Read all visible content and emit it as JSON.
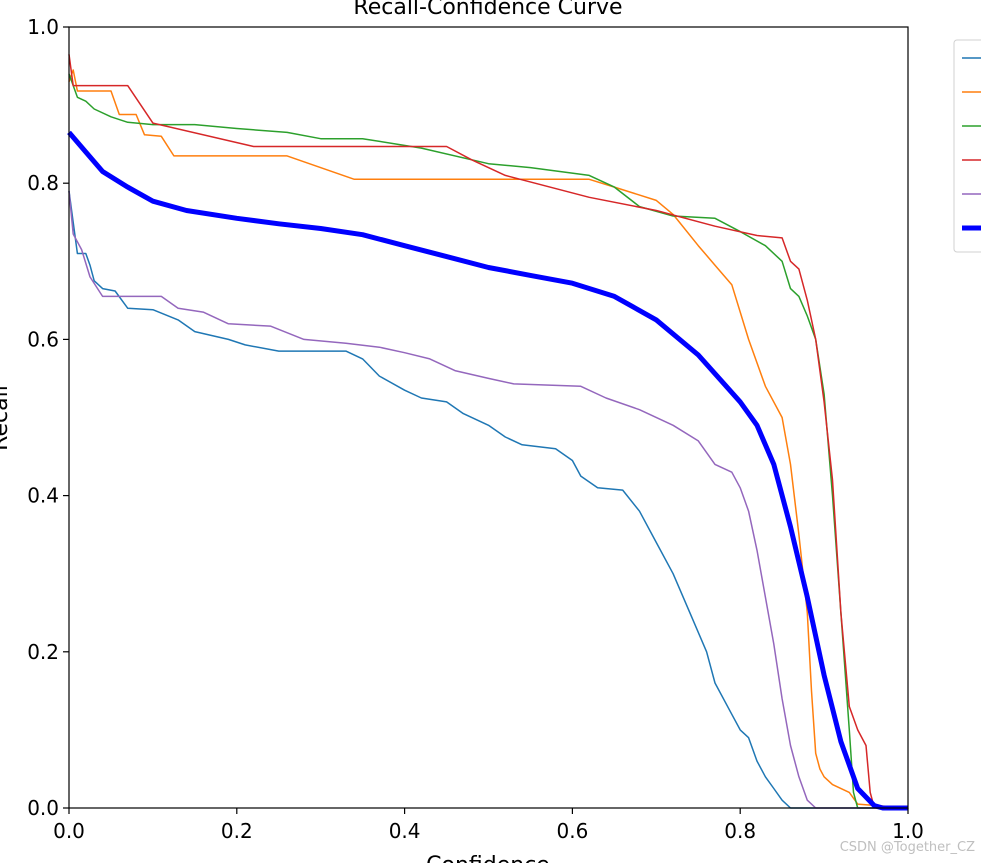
{
  "chart_data": {
    "type": "line",
    "title": "Recall-Confidence Curve",
    "xlabel": "Confidence",
    "ylabel": "Recall",
    "xlim": [
      0,
      1
    ],
    "ylim": [
      0,
      1
    ],
    "xticks": [
      "0.0",
      "0.2",
      "0.4",
      "0.6",
      "0.8",
      "1.0"
    ],
    "yticks": [
      "0.0",
      "0.2",
      "0.4",
      "0.6",
      "0.8",
      "1.0"
    ],
    "grid": false,
    "legend_position": "outside-top-right",
    "series": [
      {
        "color": "#1f77b4",
        "linewidth": 1.5,
        "points": [
          [
            0,
            0.79
          ],
          [
            0.005,
            0.75
          ],
          [
            0.01,
            0.71
          ],
          [
            0.02,
            0.71
          ],
          [
            0.025,
            0.695
          ],
          [
            0.03,
            0.675
          ],
          [
            0.04,
            0.665
          ],
          [
            0.055,
            0.662
          ],
          [
            0.07,
            0.64
          ],
          [
            0.1,
            0.638
          ],
          [
            0.13,
            0.625
          ],
          [
            0.15,
            0.61
          ],
          [
            0.19,
            0.6
          ],
          [
            0.21,
            0.593
          ],
          [
            0.25,
            0.585
          ],
          [
            0.28,
            0.585
          ],
          [
            0.33,
            0.585
          ],
          [
            0.35,
            0.575
          ],
          [
            0.37,
            0.553
          ],
          [
            0.4,
            0.535
          ],
          [
            0.42,
            0.525
          ],
          [
            0.45,
            0.52
          ],
          [
            0.47,
            0.505
          ],
          [
            0.5,
            0.49
          ],
          [
            0.52,
            0.475
          ],
          [
            0.54,
            0.465
          ],
          [
            0.58,
            0.46
          ],
          [
            0.6,
            0.445
          ],
          [
            0.61,
            0.425
          ],
          [
            0.63,
            0.41
          ],
          [
            0.66,
            0.407
          ],
          [
            0.68,
            0.38
          ],
          [
            0.7,
            0.34
          ],
          [
            0.72,
            0.3
          ],
          [
            0.74,
            0.25
          ],
          [
            0.76,
            0.2
          ],
          [
            0.77,
            0.16
          ],
          [
            0.79,
            0.12
          ],
          [
            0.8,
            0.1
          ],
          [
            0.81,
            0.09
          ],
          [
            0.82,
            0.06
          ],
          [
            0.83,
            0.04
          ],
          [
            0.84,
            0.025
          ],
          [
            0.85,
            0.01
          ],
          [
            0.86,
            0.0
          ],
          [
            1.0,
            0.0
          ]
        ]
      },
      {
        "color": "#ff7f0e",
        "linewidth": 1.5,
        "points": [
          [
            0,
            0.93
          ],
          [
            0.005,
            0.945
          ],
          [
            0.01,
            0.918
          ],
          [
            0.05,
            0.918
          ],
          [
            0.06,
            0.888
          ],
          [
            0.08,
            0.888
          ],
          [
            0.09,
            0.862
          ],
          [
            0.11,
            0.86
          ],
          [
            0.125,
            0.835
          ],
          [
            0.26,
            0.835
          ],
          [
            0.34,
            0.805
          ],
          [
            0.62,
            0.805
          ],
          [
            0.65,
            0.795
          ],
          [
            0.7,
            0.778
          ],
          [
            0.72,
            0.76
          ],
          [
            0.75,
            0.72
          ],
          [
            0.77,
            0.695
          ],
          [
            0.79,
            0.67
          ],
          [
            0.81,
            0.6
          ],
          [
            0.83,
            0.54
          ],
          [
            0.85,
            0.5
          ],
          [
            0.86,
            0.44
          ],
          [
            0.87,
            0.35
          ],
          [
            0.88,
            0.25
          ],
          [
            0.885,
            0.15
          ],
          [
            0.89,
            0.07
          ],
          [
            0.895,
            0.05
          ],
          [
            0.9,
            0.04
          ],
          [
            0.91,
            0.03
          ],
          [
            0.93,
            0.02
          ],
          [
            0.94,
            0.005
          ],
          [
            1.0,
            0.0
          ]
        ]
      },
      {
        "color": "#2ca02c",
        "linewidth": 1.5,
        "points": [
          [
            0,
            0.94
          ],
          [
            0.01,
            0.91
          ],
          [
            0.02,
            0.905
          ],
          [
            0.03,
            0.895
          ],
          [
            0.05,
            0.885
          ],
          [
            0.07,
            0.878
          ],
          [
            0.1,
            0.875
          ],
          [
            0.15,
            0.875
          ],
          [
            0.2,
            0.87
          ],
          [
            0.26,
            0.865
          ],
          [
            0.3,
            0.857
          ],
          [
            0.35,
            0.857
          ],
          [
            0.42,
            0.845
          ],
          [
            0.5,
            0.825
          ],
          [
            0.55,
            0.82
          ],
          [
            0.62,
            0.81
          ],
          [
            0.65,
            0.795
          ],
          [
            0.68,
            0.77
          ],
          [
            0.72,
            0.758
          ],
          [
            0.77,
            0.755
          ],
          [
            0.8,
            0.738
          ],
          [
            0.83,
            0.72
          ],
          [
            0.85,
            0.7
          ],
          [
            0.86,
            0.665
          ],
          [
            0.87,
            0.655
          ],
          [
            0.88,
            0.63
          ],
          [
            0.89,
            0.6
          ],
          [
            0.9,
            0.53
          ],
          [
            0.91,
            0.4
          ],
          [
            0.92,
            0.25
          ],
          [
            0.93,
            0.1
          ],
          [
            0.935,
            0.02
          ],
          [
            0.94,
            0.0
          ],
          [
            1.0,
            0.0
          ]
        ]
      },
      {
        "color": "#d62728",
        "linewidth": 1.5,
        "points": [
          [
            0,
            0.965
          ],
          [
            0.005,
            0.925
          ],
          [
            0.07,
            0.925
          ],
          [
            0.1,
            0.877
          ],
          [
            0.22,
            0.847
          ],
          [
            0.45,
            0.847
          ],
          [
            0.48,
            0.83
          ],
          [
            0.52,
            0.81
          ],
          [
            0.62,
            0.782
          ],
          [
            0.7,
            0.765
          ],
          [
            0.77,
            0.745
          ],
          [
            0.82,
            0.733
          ],
          [
            0.85,
            0.73
          ],
          [
            0.86,
            0.7
          ],
          [
            0.87,
            0.69
          ],
          [
            0.88,
            0.65
          ],
          [
            0.89,
            0.6
          ],
          [
            0.9,
            0.52
          ],
          [
            0.91,
            0.42
          ],
          [
            0.92,
            0.25
          ],
          [
            0.93,
            0.13
          ],
          [
            0.94,
            0.1
          ],
          [
            0.95,
            0.08
          ],
          [
            0.955,
            0.02
          ],
          [
            0.96,
            0.0
          ],
          [
            1.0,
            0.0
          ]
        ]
      },
      {
        "color": "#9467bd",
        "linewidth": 1.5,
        "points": [
          [
            0,
            0.79
          ],
          [
            0.005,
            0.735
          ],
          [
            0.015,
            0.715
          ],
          [
            0.025,
            0.68
          ],
          [
            0.04,
            0.655
          ],
          [
            0.11,
            0.655
          ],
          [
            0.13,
            0.64
          ],
          [
            0.16,
            0.635
          ],
          [
            0.19,
            0.62
          ],
          [
            0.24,
            0.617
          ],
          [
            0.28,
            0.6
          ],
          [
            0.33,
            0.595
          ],
          [
            0.37,
            0.59
          ],
          [
            0.4,
            0.583
          ],
          [
            0.43,
            0.575
          ],
          [
            0.46,
            0.56
          ],
          [
            0.5,
            0.55
          ],
          [
            0.53,
            0.543
          ],
          [
            0.61,
            0.54
          ],
          [
            0.64,
            0.525
          ],
          [
            0.68,
            0.51
          ],
          [
            0.72,
            0.49
          ],
          [
            0.75,
            0.47
          ],
          [
            0.77,
            0.44
          ],
          [
            0.79,
            0.43
          ],
          [
            0.8,
            0.41
          ],
          [
            0.81,
            0.38
          ],
          [
            0.82,
            0.33
          ],
          [
            0.83,
            0.27
          ],
          [
            0.84,
            0.21
          ],
          [
            0.85,
            0.14
          ],
          [
            0.86,
            0.08
          ],
          [
            0.87,
            0.04
          ],
          [
            0.88,
            0.01
          ],
          [
            0.89,
            0.0
          ],
          [
            1.0,
            0.0
          ]
        ]
      },
      {
        "color": "#0000ff",
        "linewidth": 5,
        "points": [
          [
            0,
            0.865
          ],
          [
            0.02,
            0.84
          ],
          [
            0.04,
            0.815
          ],
          [
            0.07,
            0.795
          ],
          [
            0.1,
            0.777
          ],
          [
            0.14,
            0.765
          ],
          [
            0.2,
            0.755
          ],
          [
            0.25,
            0.748
          ],
          [
            0.3,
            0.742
          ],
          [
            0.35,
            0.734
          ],
          [
            0.4,
            0.72
          ],
          [
            0.45,
            0.706
          ],
          [
            0.5,
            0.692
          ],
          [
            0.55,
            0.682
          ],
          [
            0.6,
            0.672
          ],
          [
            0.65,
            0.655
          ],
          [
            0.7,
            0.625
          ],
          [
            0.75,
            0.58
          ],
          [
            0.8,
            0.52
          ],
          [
            0.82,
            0.49
          ],
          [
            0.84,
            0.44
          ],
          [
            0.86,
            0.36
          ],
          [
            0.88,
            0.27
          ],
          [
            0.9,
            0.17
          ],
          [
            0.92,
            0.085
          ],
          [
            0.94,
            0.025
          ],
          [
            0.96,
            0.003
          ],
          [
            0.97,
            0.0
          ],
          [
            1.0,
            0.0
          ]
        ]
      }
    ]
  },
  "watermark": "CSDN @Together_CZ"
}
